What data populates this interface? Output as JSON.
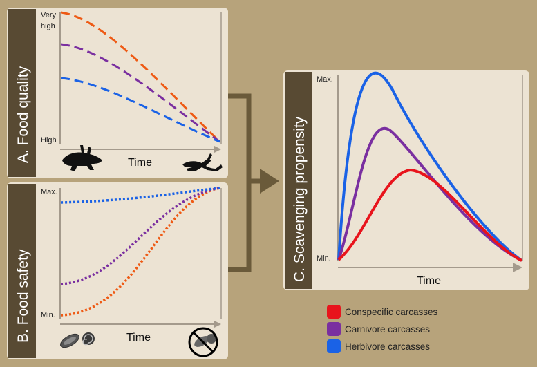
{
  "panels": {
    "a": {
      "title": "A. Food quality",
      "y_top_line1": "Very",
      "y_top_line2": "high",
      "y_bottom": "High",
      "x_label": "Time"
    },
    "b": {
      "title": "B. Food safety",
      "y_top": "Max.",
      "y_bottom": "Min.",
      "x_label": "Time"
    },
    "c": {
      "title": "C. Scavenging propensity",
      "y_top": "Max.",
      "y_bottom": "Min.",
      "x_label": "Time"
    }
  },
  "legend": [
    {
      "label": "Conspecific carcasses",
      "color": "#e8141c"
    },
    {
      "label": "Carnivore carcasses",
      "color": "#7a2fa0"
    },
    {
      "label": "Herbivore carcasses",
      "color": "#1a62e6"
    }
  ],
  "colors": {
    "background": "#b7a37b",
    "panel": "#ece3d3",
    "title_bar": "#584a33",
    "arrow": "#6a5a3a",
    "conspecific": "#e8141c",
    "conspecific_dashed": "#ee5a14",
    "carnivore": "#7a2fa0",
    "herbivore": "#1a62e6"
  },
  "icons": [
    "fresh-carcass-icon",
    "decayed-carcass-icon",
    "parasite-eggs-icon",
    "no-parasites-icon"
  ]
}
